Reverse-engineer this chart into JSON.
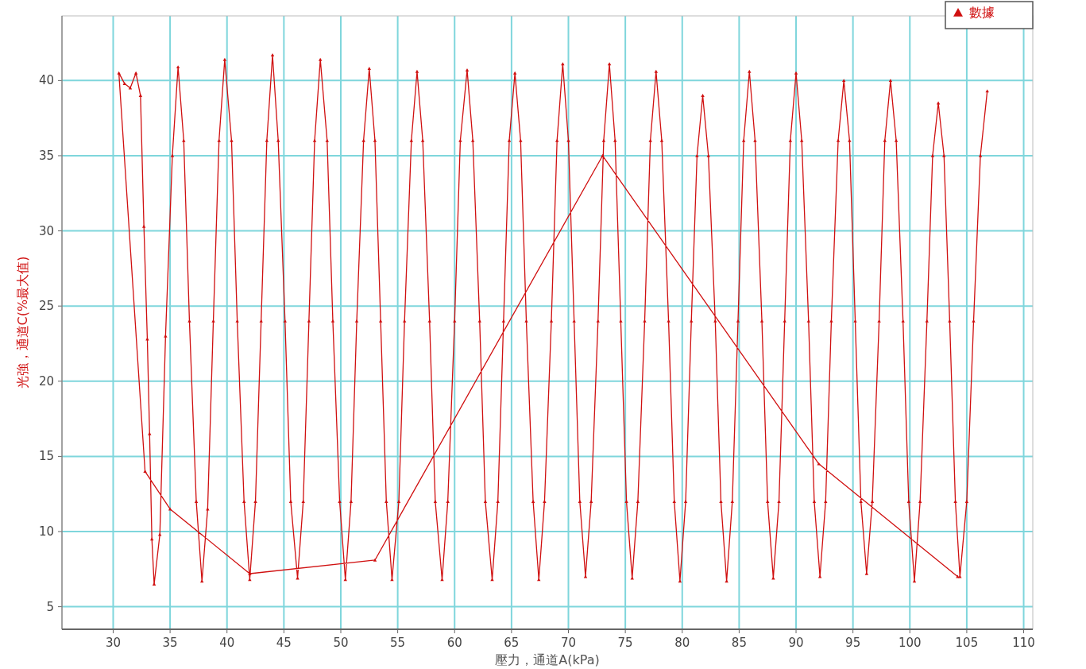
{
  "chart_data": {
    "type": "line",
    "xlabel": "壓力，通道A(kPa)",
    "ylabel": "光強，通道C(%最大值)",
    "xlim": [
      25.5,
      110.8
    ],
    "xticks": [
      30,
      35,
      40,
      45,
      50,
      55,
      60,
      65,
      70,
      75,
      80,
      85,
      90,
      95,
      100,
      105,
      110
    ],
    "ylim": [
      3.5,
      44.3
    ],
    "yticks": [
      5,
      10,
      15,
      20,
      25,
      30,
      35,
      40
    ],
    "grid": true,
    "legend": "top right",
    "marker": "triangle",
    "line_style": "solid",
    "series": [
      {
        "name": "數據",
        "color": "#d01010",
        "x": [
          104.2,
          92,
          73,
          53,
          42,
          35,
          32.8,
          30.5,
          31,
          31.5,
          32,
          32.4,
          32.7,
          33,
          33.2,
          33.4,
          33.6,
          34.1,
          34.6,
          35.2,
          35.7,
          36.2,
          36.7,
          37.3,
          37.8,
          38.3,
          38.8,
          39.3,
          39.8,
          40.4,
          40.9,
          41.5,
          42.0,
          42.5,
          43.0,
          43.5,
          44.0,
          44.5,
          45.1,
          45.6,
          46.2,
          46.7,
          47.2,
          47.7,
          48.2,
          48.8,
          49.3,
          49.9,
          50.4,
          50.9,
          51.4,
          52.0,
          52.5,
          53.0,
          53.5,
          54.0,
          54.5,
          55.1,
          55.6,
          56.2,
          56.7,
          57.2,
          57.8,
          58.3,
          58.9,
          59.4,
          60.0,
          60.5,
          61.1,
          61.6,
          62.2,
          62.7,
          63.3,
          63.8,
          64.3,
          64.8,
          65.3,
          65.8,
          66.3,
          66.9,
          67.4,
          67.9,
          68.5,
          69.0,
          69.5,
          70.0,
          70.5,
          71.0,
          71.5,
          72.0,
          72.6,
          73.1,
          73.6,
          74.1,
          74.6,
          75.1,
          75.6,
          76.1,
          76.7,
          77.2,
          77.7,
          78.2,
          78.8,
          79.3,
          79.8,
          80.3,
          80.8,
          81.3,
          81.8,
          82.3,
          82.9,
          83.4,
          83.9,
          84.4,
          84.9,
          85.4,
          85.9,
          86.4,
          87.0,
          87.5,
          88.0,
          88.5,
          89.0,
          89.5,
          90.0,
          90.5,
          91.1,
          91.6,
          92.1,
          92.6,
          93.1,
          93.7,
          94.2,
          94.7,
          95.2,
          95.7,
          96.2,
          96.7,
          97.3,
          97.8,
          98.3,
          98.8,
          99.4,
          99.9,
          100.4,
          100.9,
          101.5,
          102.0,
          102.5,
          103.0,
          103.5,
          104.0,
          104.4,
          105.0,
          105.6,
          106.2,
          106.8
        ],
        "values": [
          7,
          14.5,
          35,
          8.1,
          7.2,
          11.5,
          14,
          40.5,
          39.8,
          39.5,
          40.5,
          39,
          30.3,
          22.8,
          16.5,
          9.5,
          6.5,
          9.8,
          23,
          35,
          40.9,
          36,
          24,
          12,
          6.7,
          11.5,
          24,
          36,
          41.4,
          36,
          24,
          12,
          6.8,
          12,
          24,
          36,
          41.7,
          36,
          24,
          12,
          6.9,
          12,
          24,
          36,
          41.4,
          36,
          24,
          12,
          6.8,
          12,
          24,
          36,
          40.8,
          36,
          24,
          12,
          6.8,
          12,
          24,
          36,
          40.6,
          36,
          24,
          12,
          6.8,
          12,
          24,
          36,
          40.7,
          36,
          24,
          12,
          6.8,
          12,
          24,
          36,
          40.5,
          36,
          24,
          12,
          6.8,
          12,
          24,
          36,
          41.1,
          36,
          24,
          12,
          7.0,
          12,
          24,
          36,
          41.1,
          36,
          24,
          12,
          6.9,
          12,
          24,
          36,
          40.6,
          36,
          24,
          12,
          6.7,
          12,
          24,
          35,
          39,
          35,
          24,
          12,
          6.7,
          12,
          24,
          36,
          40.6,
          36,
          24,
          12,
          6.9,
          12,
          24,
          36,
          40.5,
          36,
          24,
          12,
          7.0,
          12,
          24,
          36,
          40,
          36,
          24,
          12,
          7.2,
          12,
          24,
          36,
          40,
          36,
          24,
          12,
          6.7,
          12,
          24,
          35,
          38.5,
          35,
          24,
          12,
          7,
          12,
          24,
          35,
          39.3
        ]
      }
    ]
  }
}
